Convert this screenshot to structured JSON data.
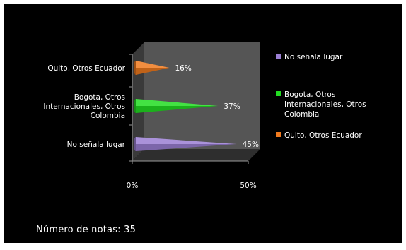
{
  "chart_data": {
    "type": "bar",
    "orientation": "horizontal",
    "style": "3d-cone",
    "categories": [
      "No señala lugar",
      "Bogota, Otros Internacionales, Otros Colombia",
      "Quito, Otros Ecuador"
    ],
    "category_label_lines": [
      [
        "No señala lugar"
      ],
      [
        "Bogota, Otros",
        "Internacionales, Otros",
        "Colombia"
      ],
      [
        "Quito, Otros Ecuador"
      ]
    ],
    "values": [
      45,
      37,
      16
    ],
    "data_labels": [
      "45%",
      "37%",
      "16%"
    ],
    "colors": [
      "#9b7fd4",
      "#22dd22",
      "#f07a1e"
    ],
    "xlim": [
      0,
      50
    ],
    "xticks": [
      "0%",
      "50%"
    ],
    "legend_position": "right",
    "legend": [
      {
        "lines": [
          "No señala lugar"
        ],
        "color": "#9b7fd4"
      },
      {
        "lines": [
          "Bogota, Otros",
          "Internacionales, Otros",
          "Colombia"
        ],
        "color": "#22dd22"
      },
      {
        "lines": [
          "Quito, Otros Ecuador"
        ],
        "color": "#f07a1e"
      }
    ],
    "grid": false
  },
  "footer": {
    "text": "Número de notas: 35"
  }
}
